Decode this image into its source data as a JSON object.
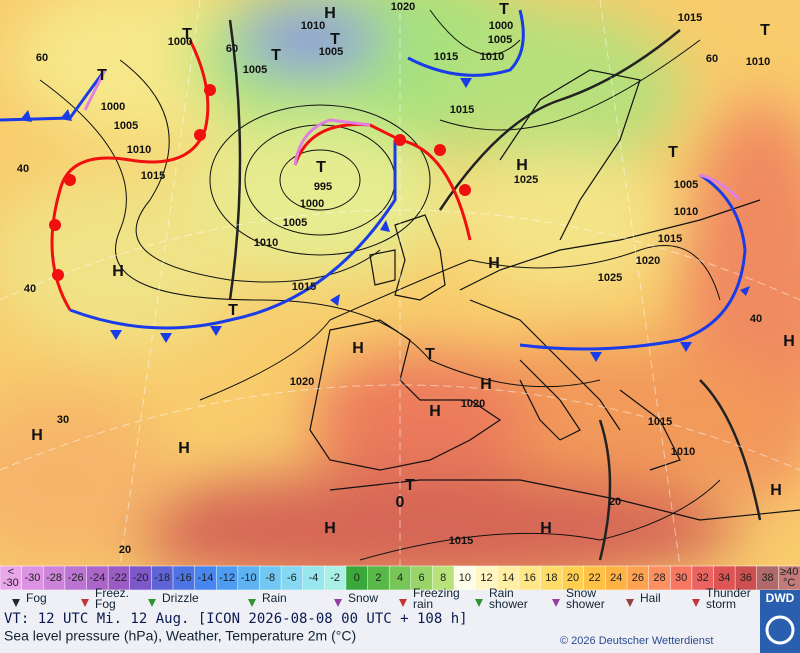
{
  "map": {
    "labels": [
      "H",
      "H",
      "H",
      "H",
      "H",
      "H",
      "H",
      "H",
      "H",
      "H",
      "H",
      "H",
      "H",
      "T",
      "T",
      "T",
      "T",
      "T",
      "T",
      "T",
      "T",
      "T",
      "T",
      "T",
      "1010",
      "1005",
      "1000",
      "1005",
      "1000",
      "1005",
      "1010",
      "1015",
      "995",
      "1000",
      "1005",
      "1010",
      "1015",
      "1020",
      "1020",
      "1015",
      "1015",
      "1010",
      "1000",
      "1005",
      "1020",
      "1025",
      "1025",
      "1020",
      "1015",
      "1010",
      "1005",
      "1015",
      "1010",
      "1015",
      "1015",
      "1010",
      "60",
      "40",
      "40",
      "30",
      "20",
      "0",
      "20",
      "40",
      "60",
      "60"
    ]
  },
  "scale": {
    "cells": [
      {
        "label": [
          "<",
          "-30"
        ],
        "color": "#eaa6ea"
      },
      {
        "label": [
          "-30"
        ],
        "color": "#dc94e2"
      },
      {
        "label": [
          "-28"
        ],
        "color": "#cc84da"
      },
      {
        "label": [
          "-26"
        ],
        "color": "#bc74d2"
      },
      {
        "label": [
          "-24"
        ],
        "color": "#ac66ca"
      },
      {
        "label": [
          "-22"
        ],
        "color": "#9a5cc4"
      },
      {
        "label": [
          "-20"
        ],
        "color": "#7c58c8"
      },
      {
        "label": [
          "-18"
        ],
        "color": "#5e64d6"
      },
      {
        "label": [
          "-16"
        ],
        "color": "#4c74e4"
      },
      {
        "label": [
          "-14"
        ],
        "color": "#4686ee"
      },
      {
        "label": [
          "-12"
        ],
        "color": "#4e9cf2"
      },
      {
        "label": [
          "-10"
        ],
        "color": "#5eb2f2"
      },
      {
        "label": [
          "-8"
        ],
        "color": "#72c8f2"
      },
      {
        "label": [
          "-6"
        ],
        "color": "#86d8f2"
      },
      {
        "label": [
          "-4"
        ],
        "color": "#98e6ee"
      },
      {
        "label": [
          "-2"
        ],
        "color": "#aaf0e4"
      },
      {
        "label": [
          "0"
        ],
        "color": "#3aa83a"
      },
      {
        "label": [
          "2"
        ],
        "color": "#58b848"
      },
      {
        "label": [
          "4"
        ],
        "color": "#78c658"
      },
      {
        "label": [
          "6"
        ],
        "color": "#98d468"
      },
      {
        "label": [
          "8"
        ],
        "color": "#b8e27a"
      },
      {
        "label": [
          "10"
        ],
        "color": "#fcfce8"
      },
      {
        "label": [
          "12"
        ],
        "color": "#fff6c4"
      },
      {
        "label": [
          "14"
        ],
        "color": "#ffeea4"
      },
      {
        "label": [
          "16"
        ],
        "color": "#ffe686"
      },
      {
        "label": [
          "18"
        ],
        "color": "#ffdc68"
      },
      {
        "label": [
          "20"
        ],
        "color": "#ffd050"
      },
      {
        "label": [
          "22"
        ],
        "color": "#ffc244"
      },
      {
        "label": [
          "24"
        ],
        "color": "#ffb244"
      },
      {
        "label": [
          "26"
        ],
        "color": "#ffa250"
      },
      {
        "label": [
          "28"
        ],
        "color": "#fc9060"
      },
      {
        "label": [
          "30"
        ],
        "color": "#f67862"
      },
      {
        "label": [
          "32"
        ],
        "color": "#ec6460"
      },
      {
        "label": [
          "34"
        ],
        "color": "#de5454"
      },
      {
        "label": [
          "36"
        ],
        "color": "#cc5050"
      },
      {
        "label": [
          "38"
        ],
        "color": "#b06a6a"
      },
      {
        "label": [
          "≥40",
          "°C"
        ],
        "color": "#c27a7a"
      }
    ]
  },
  "legend": [
    [
      "Fog"
    ],
    [
      "Freez.",
      "Fog"
    ],
    [
      "Drizzle"
    ],
    [
      "Rain"
    ],
    [
      "Snow"
    ],
    [
      "Freezing",
      "rain"
    ],
    [
      "Rain",
      "shower"
    ],
    [
      "Snow",
      "shower"
    ],
    [
      "Hail"
    ],
    [
      "Thunder",
      "storm"
    ]
  ],
  "footer": {
    "line1": "VT: 12 UTC Mi.  12 Aug. [ICON 2026-08-08  00 UTC + 108 h]",
    "line2": "Sea level pressure (hPa), Weather, Temperature 2m (°C)",
    "copyright": "© 2026 Deutscher Wetterdienst",
    "logo": "DWD"
  }
}
